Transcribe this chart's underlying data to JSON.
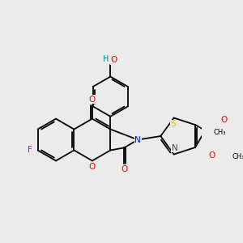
{
  "background_color": "#ebebeb",
  "figsize": [
    3.0,
    3.0
  ],
  "dpi": 100,
  "atom_colors": {
    "O": "#ff0000",
    "N": "#0000ff",
    "F": "#cc00cc",
    "S": "#cccc00",
    "H": "#008080",
    "C": "#000000"
  },
  "lw": 1.3,
  "off": 0.12
}
